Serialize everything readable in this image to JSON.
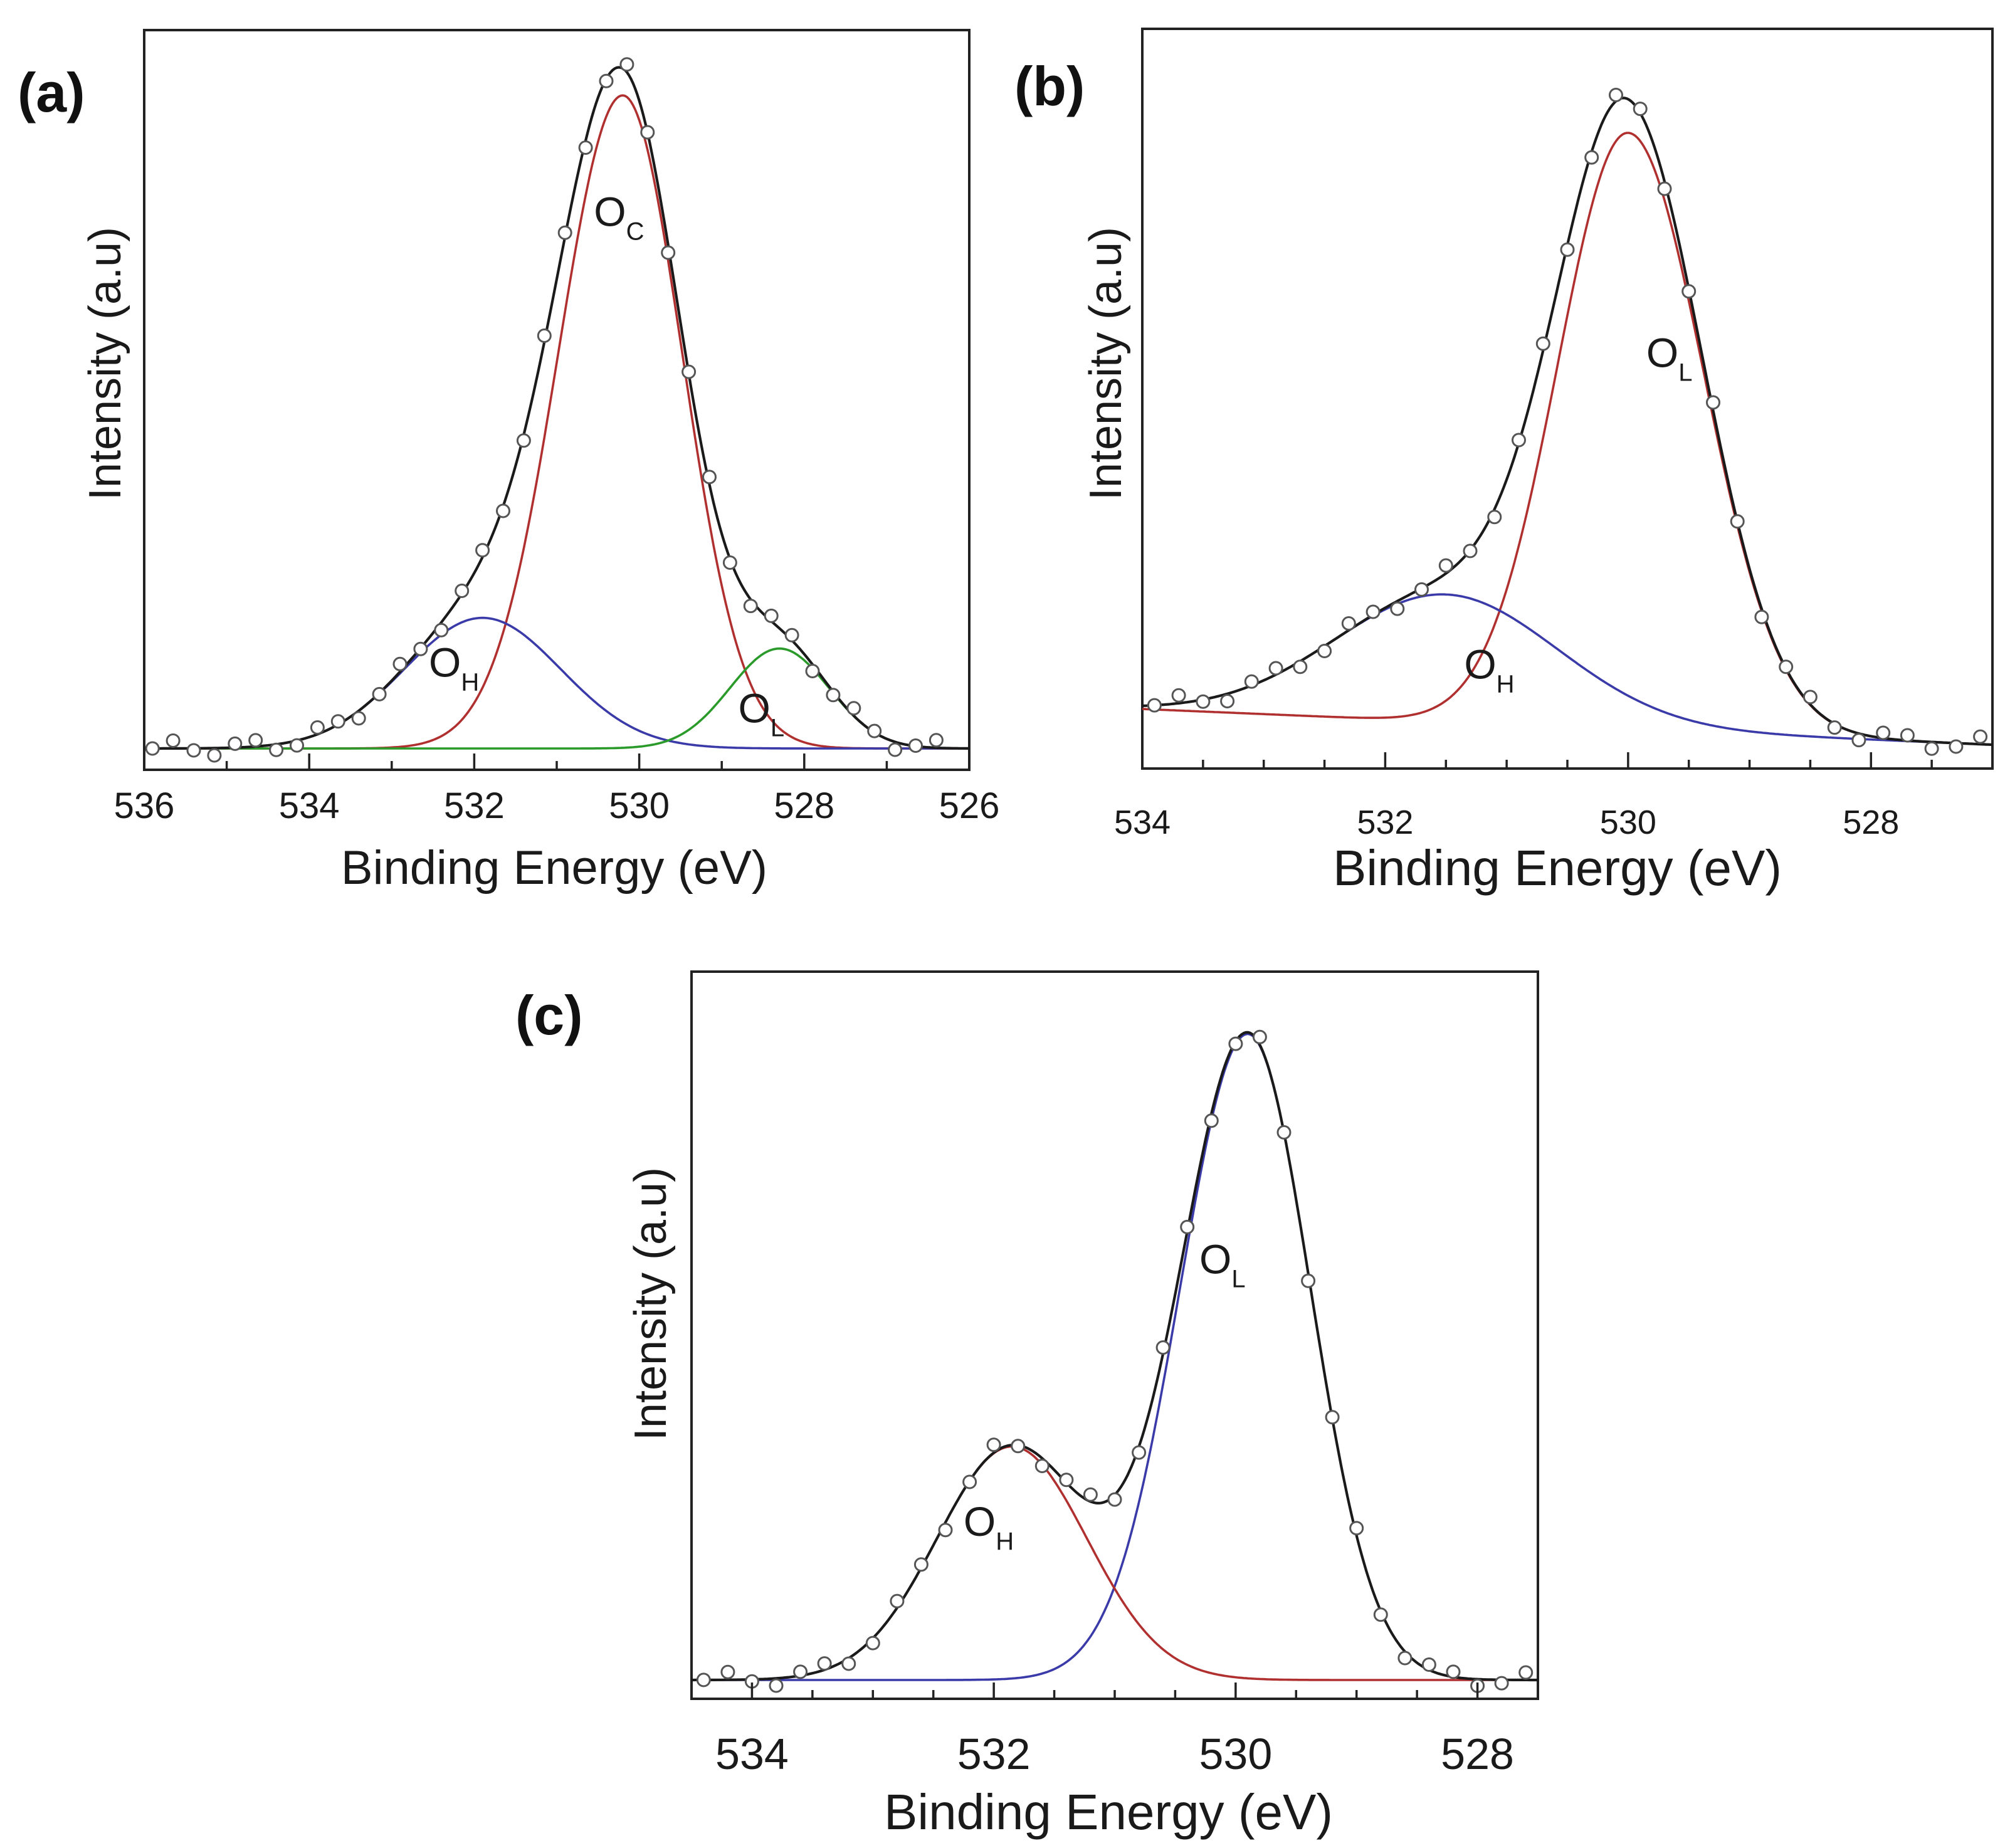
{
  "colors": {
    "red": "#b03030",
    "blue": "#3a3aa8",
    "green": "#2a9a2a",
    "black": "#1a1a1a",
    "frame": "#222222"
  },
  "chart_data": [
    {
      "type": "line",
      "panel_label": "(a)",
      "xlabel": "Binding Energy (eV)",
      "ylabel": "Intensity (a.u)",
      "xlim": [
        536,
        526
      ],
      "x_reversed": true,
      "ylim": [
        0,
        1.1
      ],
      "xticks": [
        536,
        534,
        532,
        530,
        528,
        526
      ],
      "xtick_labels": [
        "536",
        "534",
        "532",
        "530",
        "528",
        "526"
      ],
      "minor_step": 1,
      "baseline": 0.0,
      "background_slope": 0.0,
      "components": [
        {
          "name": "O_C",
          "label_main": "O",
          "label_sub": "C",
          "center": 530.2,
          "amplitude": 1.0,
          "sigma_left": 0.78,
          "sigma_right": 0.72,
          "color": "red"
        },
        {
          "name": "O_H",
          "label_main": "O",
          "label_sub": "H",
          "center": 531.9,
          "amplitude": 0.2,
          "sigma_left": 0.95,
          "sigma_right": 0.95,
          "color": "blue"
        },
        {
          "name": "O_L",
          "label_main": "O",
          "label_sub": "L",
          "center": 528.3,
          "amplitude": 0.153,
          "sigma_left": 0.6,
          "sigma_right": 0.6,
          "color": "green"
        }
      ],
      "labels": [
        {
          "component": "O_C",
          "x": 530.55,
          "y": 0.8
        },
        {
          "component": "O_H",
          "x": 532.55,
          "y": 0.11
        },
        {
          "component": "O_L",
          "x": 528.8,
          "y": 0.04
        }
      ],
      "points": {
        "x_start": 535.9,
        "x_end": 526.35,
        "step": 0.25
      }
    },
    {
      "type": "line",
      "panel_label": "(b)",
      "xlabel": "Binding Energy (eV)",
      "ylabel": "Intensity (a.u)",
      "xlim": [
        534,
        527
      ],
      "x_reversed": true,
      "ylim": [
        0,
        1.08
      ],
      "xticks": [
        534,
        532,
        530,
        528
      ],
      "xtick_labels": [
        "534",
        "532",
        "530",
        "528"
      ],
      "minor_step": 0.5,
      "baseline": 0.0,
      "background_slope": 0.0077,
      "components": [
        {
          "name": "O_L",
          "label_main": "O",
          "label_sub": "L",
          "center": 530.0,
          "amplitude": 0.9,
          "sigma_left": 0.58,
          "sigma_right": 0.62,
          "color": "red"
        },
        {
          "name": "O_H",
          "label_main": "O",
          "label_sub": "H",
          "center": 531.5,
          "amplitude": 0.192,
          "sigma_left": 0.92,
          "sigma_right": 0.92,
          "color": "blue"
        }
      ],
      "labels": [
        {
          "component": "O_L",
          "x": 529.85,
          "y": 0.57
        },
        {
          "component": "O_H",
          "x": 531.35,
          "y": 0.1
        }
      ],
      "points": {
        "x_start": 533.9,
        "x_end": 527.1,
        "step": 0.2
      }
    },
    {
      "type": "line",
      "panel_label": "(c)",
      "xlabel": "Binding Energy (eV)",
      "ylabel": "Intensity (a.u)",
      "xlim": [
        534.5,
        527.5
      ],
      "x_reversed": true,
      "ylim": [
        0,
        1.08
      ],
      "xticks": [
        534,
        532,
        530,
        528
      ],
      "xtick_labels": [
        "534",
        "532",
        "530",
        "528"
      ],
      "minor_step": 0.5,
      "baseline": 0.0,
      "background_slope": 0.0,
      "components": [
        {
          "name": "O_L",
          "label_main": "O",
          "label_sub": "L",
          "center": 529.9,
          "amplitude": 0.985,
          "sigma_left": 0.56,
          "sigma_right": 0.52,
          "color": "blue"
        },
        {
          "name": "O_H",
          "label_main": "O",
          "label_sub": "H",
          "center": 531.85,
          "amplitude": 0.356,
          "sigma_left": 0.62,
          "sigma_right": 0.62,
          "color": "red"
        }
      ],
      "labels": [
        {
          "component": "O_L",
          "x": 530.3,
          "y": 0.62
        },
        {
          "component": "O_H",
          "x": 532.25,
          "y": 0.22
        }
      ],
      "points": {
        "x_start": 534.4,
        "x_end": 527.6,
        "step": 0.2
      }
    }
  ]
}
